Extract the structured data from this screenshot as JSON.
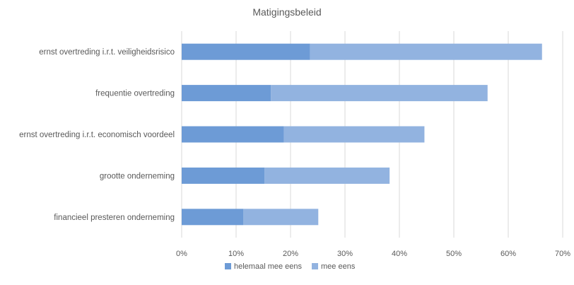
{
  "chart_data": {
    "type": "bar",
    "orientation": "horizontal",
    "stacked": true,
    "title": "Matigingsbeleid",
    "xlabel": "",
    "ylabel": "",
    "categories": [
      "ernst overtreding i.r.t. veiligheidsrisico",
      "frequentie overtreding",
      "ernst overtreding i.r.t. economisch voordeel",
      "grootte onderneming",
      "financieel presteren onderneming"
    ],
    "series": [
      {
        "name": "helemaal mee eens",
        "values": [
          23.6,
          16.4,
          18.8,
          15.2,
          11.3
        ]
      },
      {
        "name": "mee eens",
        "values": [
          42.6,
          39.8,
          25.8,
          23.0,
          13.8
        ]
      }
    ],
    "xlim": [
      0,
      70
    ],
    "xticks": [
      "0%",
      "10%",
      "20%",
      "30%",
      "40%",
      "50%",
      "60%",
      "70%"
    ],
    "grid": "vertical",
    "legend": "bottom",
    "colors": [
      "#6d9bd6",
      "#92b3e0"
    ],
    "gridline_color": "#d9d9d9",
    "text_color": "#595959"
  }
}
